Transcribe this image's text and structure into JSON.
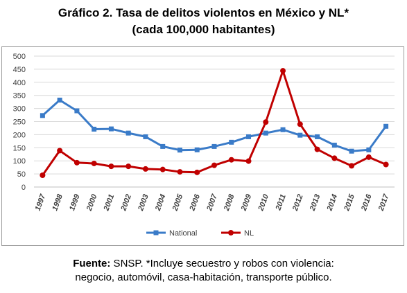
{
  "header": {
    "title_line1": "Gráfico 2. Tasa de delitos violentos en México y NL*",
    "title_line2": "(cada 100,000 habitantes)"
  },
  "footnote": {
    "label": "Fuente:",
    "text_line1": " SNSP. *Incluye secuestro y robos con violencia:",
    "text_line2": "negocio, automóvil, casa-habitación, transporte público."
  },
  "chart_data": {
    "type": "line",
    "title": "Gráfico 2. Tasa de delitos violentos en México y NL*",
    "subtitle": "(cada 100,000 habitantes)",
    "x": [
      "1997",
      "1998",
      "1999",
      "2000",
      "2001",
      "2002",
      "2003",
      "2004",
      "2005",
      "2006",
      "2007",
      "2008",
      "2009",
      "2010",
      "2011",
      "2012",
      "2013",
      "2014",
      "2015",
      "2016",
      "2017"
    ],
    "series": [
      {
        "name": "National",
        "color": "#3a7bc8",
        "marker": "square",
        "values": [
          273,
          332,
          291,
          221,
          222,
          206,
          192,
          155,
          141,
          142,
          155,
          171,
          192,
          206,
          219,
          198,
          192,
          160,
          137,
          142,
          232
        ]
      },
      {
        "name": "NL",
        "color": "#c00000",
        "marker": "circle",
        "values": [
          45,
          139,
          93,
          90,
          79,
          79,
          69,
          67,
          58,
          56,
          83,
          104,
          99,
          248,
          444,
          240,
          144,
          110,
          81,
          114,
          86
        ]
      }
    ],
    "ylim": [
      0,
      500
    ],
    "yticks": [
      0,
      50,
      100,
      150,
      200,
      250,
      300,
      350,
      400,
      450,
      500
    ],
    "grid": true,
    "legend_position": "bottom",
    "xlabel": "",
    "ylabel": ""
  }
}
